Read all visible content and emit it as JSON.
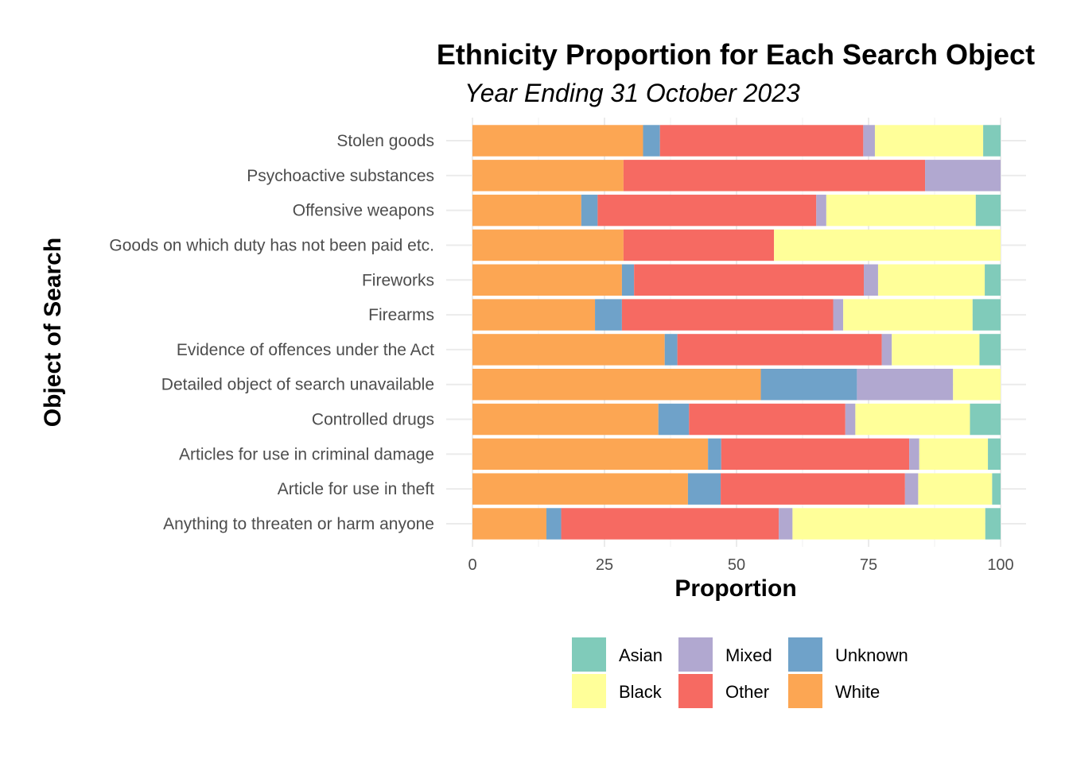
{
  "chart_data": {
    "type": "bar",
    "orientation": "horizontal",
    "stacked": true,
    "title": "Ethnicity Proportion for Each Search Object",
    "subtitle": "Year Ending 31 October 2023",
    "xlabel": "Proportion",
    "ylabel": "Object of Search",
    "xlim": [
      0,
      100
    ],
    "x_ticks": [
      "0",
      "25",
      "50",
      "75",
      "100"
    ],
    "x_tick_values": [
      0,
      25,
      50,
      75,
      100
    ],
    "grid": true,
    "legend_position": "bottom",
    "categories": [
      "Stolen goods",
      "Psychoactive substances",
      "Offensive weapons",
      "Goods on which duty has not been paid etc.",
      "Fireworks",
      "Firearms",
      "Evidence of offences under the Act",
      "Detailed object of search unavailable",
      "Controlled drugs",
      "Articles for use in criminal damage",
      "Article for use in theft",
      "Anything to threaten or harm anyone"
    ],
    "stack_order": [
      "White",
      "Unknown",
      "Other",
      "Mixed",
      "Black",
      "Asian"
    ],
    "series": [
      {
        "name": "White",
        "color": "#fca653",
        "values": [
          32.3,
          28.6,
          20.6,
          28.6,
          28.3,
          23.2,
          36.4,
          54.6,
          35.2,
          44.6,
          40.8,
          14.0
        ]
      },
      {
        "name": "Unknown",
        "color": "#6fa2c9",
        "values": [
          3.2,
          0.0,
          3.1,
          0.0,
          2.3,
          5.1,
          2.4,
          18.2,
          5.8,
          2.5,
          6.2,
          2.8
        ]
      },
      {
        "name": "Other",
        "color": "#f66a62",
        "values": [
          38.5,
          57.1,
          41.4,
          28.5,
          43.5,
          40.0,
          38.7,
          0.0,
          29.6,
          35.6,
          34.9,
          41.2
        ]
      },
      {
        "name": "Mixed",
        "color": "#b1a8d0",
        "values": [
          2.2,
          14.3,
          1.9,
          0.0,
          2.7,
          1.9,
          1.9,
          18.2,
          1.9,
          1.9,
          2.5,
          2.6
        ]
      },
      {
        "name": "Black",
        "color": "#ffff99",
        "values": [
          20.5,
          0.0,
          28.3,
          42.9,
          20.2,
          24.5,
          16.6,
          9.0,
          21.7,
          13.0,
          14.0,
          36.5
        ]
      },
      {
        "name": "Asian",
        "color": "#80cbba",
        "values": [
          3.3,
          0.0,
          4.7,
          0.0,
          3.0,
          5.3,
          4.0,
          0.0,
          5.8,
          2.4,
          1.6,
          2.9
        ]
      }
    ],
    "legend": {
      "entries": [
        {
          "name": "Asian",
          "color": "#80cbba"
        },
        {
          "name": "Mixed",
          "color": "#b1a8d0"
        },
        {
          "name": "Unknown",
          "color": "#6fa2c9"
        },
        {
          "name": "Black",
          "color": "#ffff99"
        },
        {
          "name": "Other",
          "color": "#f66a62"
        },
        {
          "name": "White",
          "color": "#fca653"
        }
      ]
    }
  }
}
